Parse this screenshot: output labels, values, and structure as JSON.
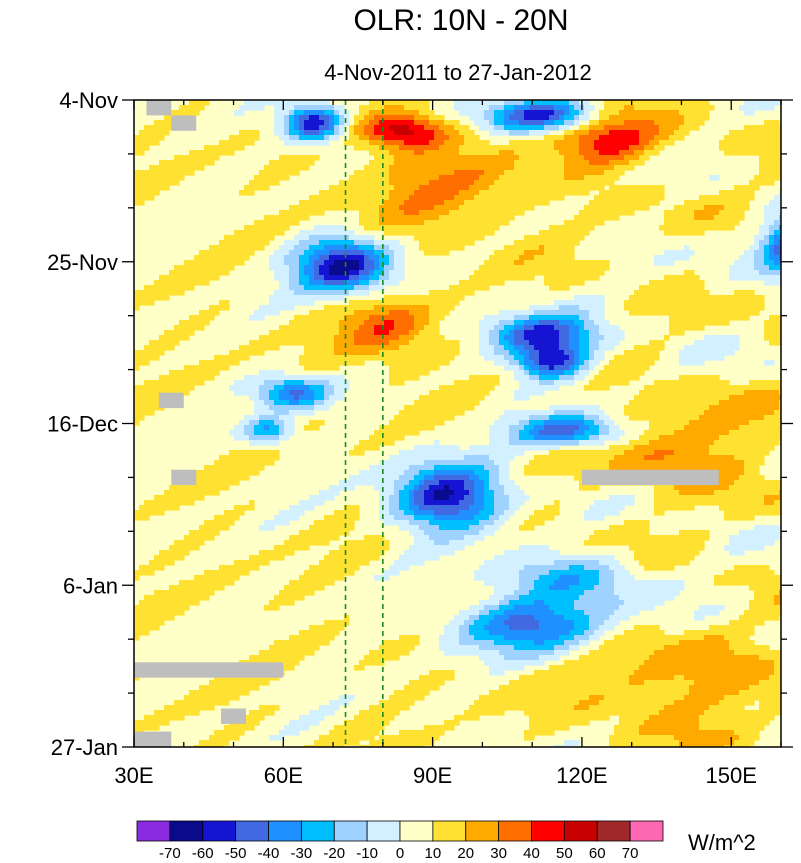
{
  "chart_data": {
    "type": "heatmap",
    "title": "OLR: 10N - 20N",
    "subtitle": "4-Nov-2011 to 27-Jan-2012",
    "xlabel": "",
    "ylabel": "",
    "x_range": [
      30,
      160
    ],
    "x_unit": "longitude (degrees E)",
    "x_ticks": [
      {
        "value": 30,
        "label": "30E"
      },
      {
        "value": 60,
        "label": "60E"
      },
      {
        "value": 90,
        "label": "90E"
      },
      {
        "value": 120,
        "label": "120E"
      },
      {
        "value": 150,
        "label": "150E"
      }
    ],
    "y_range_days": [
      0,
      84
    ],
    "y_ticks": [
      {
        "day": 0,
        "label": "4-Nov"
      },
      {
        "day": 21,
        "label": "25-Nov"
      },
      {
        "day": 42,
        "label": "16-Dec"
      },
      {
        "day": 63,
        "label": "6-Jan"
      },
      {
        "day": 84,
        "label": "27-Jan"
      }
    ],
    "reference_lines": [
      {
        "lon": 72.5,
        "style": "dashed",
        "color": "#1e8a1e"
      },
      {
        "lon": 80,
        "style": "dashed",
        "color": "#1e8a1e"
      }
    ],
    "units": "W/m^2",
    "colorbar": {
      "levels": [
        -70,
        -60,
        -50,
        -40,
        -30,
        -20,
        -10,
        0,
        10,
        20,
        30,
        40,
        50,
        60,
        70
      ],
      "labels": [
        "-70",
        "-60",
        "-50",
        "-40",
        "-30",
        "-20",
        "-10",
        "0",
        "10",
        "20",
        "30",
        "40",
        "50",
        "60",
        "70"
      ],
      "colors": [
        "#8a2be2",
        "#0a0a8c",
        "#1414d2",
        "#4169e1",
        "#1e90ff",
        "#00bfff",
        "#a0d2ff",
        "#d2f0ff",
        "#ffffc8",
        "#ffe132",
        "#ffaa00",
        "#ff6e00",
        "#ff0000",
        "#c80000",
        "#a02828",
        "#ff69b4"
      ]
    },
    "missing_color": "#bebebe",
    "anomaly_features": [
      {
        "lon": 66,
        "day": 3,
        "value": -70,
        "rx": 5,
        "ry": 2.0
      },
      {
        "lon": 72,
        "day": 21.5,
        "value": -70,
        "rx": 8,
        "ry": 3.0
      },
      {
        "lon": 93,
        "day": 51.5,
        "value": -70,
        "rx": 9,
        "ry": 3.5
      },
      {
        "lon": 112,
        "day": 2,
        "value": -60,
        "rx": 10,
        "ry": 1.8
      },
      {
        "lon": 112,
        "day": 30.5,
        "value": -60,
        "rx": 9,
        "ry": 2.2
      },
      {
        "lon": 114,
        "day": 34,
        "value": -60,
        "rx": 6,
        "ry": 1.8
      },
      {
        "lon": 117,
        "day": 43,
        "value": -60,
        "rx": 9,
        "ry": 1.8
      },
      {
        "lon": 162,
        "day": 19,
        "value": -60,
        "rx": 5,
        "ry": 3.0
      },
      {
        "lon": 110,
        "day": 68,
        "value": -50,
        "rx": 13,
        "ry": 3.0
      },
      {
        "lon": 62,
        "day": 38,
        "value": -50,
        "rx": 6,
        "ry": 1.8
      },
      {
        "lon": 57,
        "day": 43,
        "value": -40,
        "rx": 4,
        "ry": 1.5
      },
      {
        "lon": 117,
        "day": 62,
        "value": -30,
        "rx": 12,
        "ry": 2.5
      },
      {
        "lon": 84,
        "day": 4,
        "value": 50,
        "rx": 7,
        "ry": 2.0
      },
      {
        "lon": 125,
        "day": 5,
        "value": 40,
        "rx": 9,
        "ry": 3.0
      },
      {
        "lon": 81,
        "day": 30,
        "value": 30,
        "rx": 8,
        "ry": 3.5
      },
      {
        "lon": 92,
        "day": 12,
        "value": 20,
        "rx": 15,
        "ry": 5.0
      },
      {
        "lon": 140,
        "day": 45,
        "value": 20,
        "rx": 16,
        "ry": 5.0
      },
      {
        "lon": 140,
        "day": 76,
        "value": 20,
        "rx": 16,
        "ry": 5.0
      }
    ],
    "missing_patches": [
      {
        "lon": [
          32.5,
          37.5
        ],
        "day_range": [
          0,
          2
        ]
      },
      {
        "lon": [
          37.5,
          42.5
        ],
        "day_range": [
          2,
          4
        ]
      },
      {
        "lon": [
          35,
          40
        ],
        "day_range": [
          38,
          40
        ]
      },
      {
        "lon": [
          37.5,
          42.5
        ],
        "day_range": [
          48,
          50
        ]
      },
      {
        "lon": [
          120,
          147.5
        ],
        "day_range": [
          48,
          50
        ]
      },
      {
        "lon": [
          30,
          60
        ],
        "day_range": [
          73,
          75
        ]
      },
      {
        "lon": [
          47.5,
          52.5
        ],
        "day_range": [
          79,
          81
        ]
      },
      {
        "lon": [
          30,
          37.5
        ],
        "day_range": [
          82,
          84
        ]
      }
    ]
  }
}
